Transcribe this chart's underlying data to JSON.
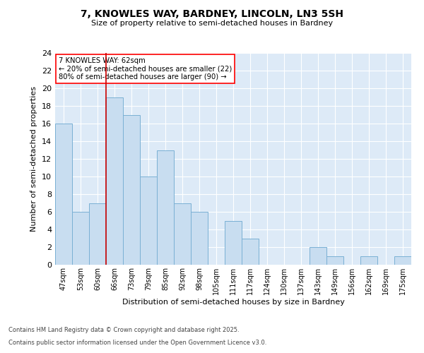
{
  "title1": "7, KNOWLES WAY, BARDNEY, LINCOLN, LN3 5SH",
  "title2": "Size of property relative to semi-detached houses in Bardney",
  "xlabel": "Distribution of semi-detached houses by size in Bardney",
  "ylabel": "Number of semi-detached properties",
  "categories": [
    "47sqm",
    "53sqm",
    "60sqm",
    "66sqm",
    "73sqm",
    "79sqm",
    "85sqm",
    "92sqm",
    "98sqm",
    "105sqm",
    "111sqm",
    "117sqm",
    "124sqm",
    "130sqm",
    "137sqm",
    "143sqm",
    "149sqm",
    "156sqm",
    "162sqm",
    "169sqm",
    "175sqm"
  ],
  "values": [
    16,
    6,
    7,
    19,
    17,
    10,
    13,
    7,
    6,
    0,
    5,
    3,
    0,
    0,
    0,
    2,
    1,
    0,
    1,
    0,
    1
  ],
  "bar_color": "#c8ddf0",
  "bar_edge_color": "#7ab0d4",
  "highlight_color": "#cc0000",
  "annotation_text_line1": "7 KNOWLES WAY: 62sqm",
  "annotation_text_line2": "← 20% of semi-detached houses are smaller (22)",
  "annotation_text_line3": "80% of semi-detached houses are larger (90) →",
  "red_line_index": 2.5,
  "ylim": [
    0,
    24
  ],
  "yticks": [
    0,
    2,
    4,
    6,
    8,
    10,
    12,
    14,
    16,
    18,
    20,
    22,
    24
  ],
  "figure_bg": "#ffffff",
  "plot_bg_color": "#ddeaf7",
  "grid_color": "#ffffff",
  "footer_line1": "Contains HM Land Registry data © Crown copyright and database right 2025.",
  "footer_line2": "Contains public sector information licensed under the Open Government Licence v3.0."
}
